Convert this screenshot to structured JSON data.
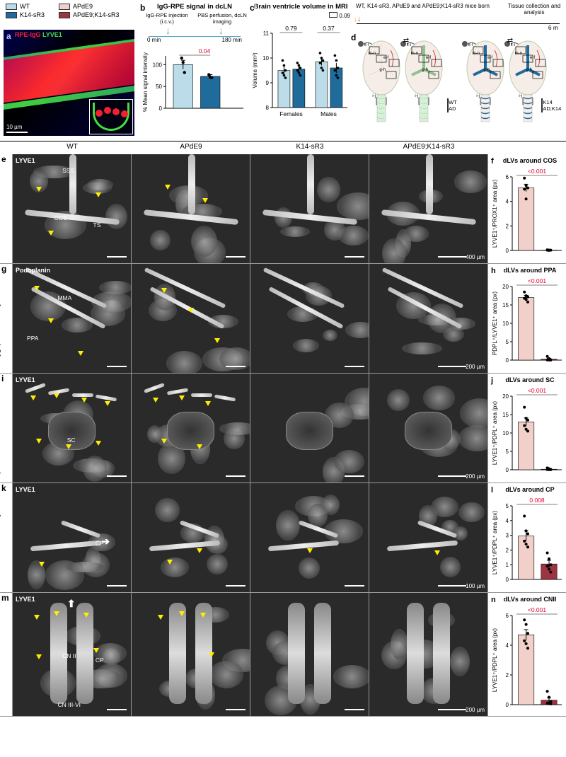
{
  "legend": {
    "items": [
      {
        "label": "WT",
        "color": "#bcdcea"
      },
      {
        "label": "K14-sR3",
        "color": "#1f6b9c"
      },
      {
        "label": "APdE9",
        "color": "#f0d0c9"
      },
      {
        "label": "APdE9;K14-sR3",
        "color": "#9e3341"
      }
    ]
  },
  "panel_a": {
    "letter": "a",
    "stain1": {
      "label": "RPE-IgG",
      "color": "#ff2030"
    },
    "stain2": {
      "label": "LYVE1",
      "color": "#40e040"
    },
    "scale": "10 µm"
  },
  "panel_b": {
    "letter": "b",
    "title": "IgG-RPE signal in dcLN",
    "step1": "IgG-RPE injection (i.c.v.)",
    "step2": "PBS perfusion, dcLN imaging",
    "t0": "0 min",
    "t1": "180 min",
    "ylabel": "% Mean signal intensity",
    "ylim": [
      0,
      120
    ],
    "yticks": [
      0,
      50,
      100
    ],
    "pvalue": "0.04",
    "bars": [
      {
        "group": "WT",
        "value": 100,
        "err": 10,
        "color": "#bcdcea",
        "points": [
          115,
          105,
          82
        ]
      },
      {
        "group": "K14-sR3",
        "value": 73,
        "err": 4,
        "color": "#1f6b9c",
        "points": [
          77,
          71,
          70
        ]
      }
    ]
  },
  "panel_c": {
    "letter": "c",
    "title": "Brain ventricle volume in MRI",
    "ylabel": "Volume (mm³)",
    "ylim": [
      8,
      11
    ],
    "yticks": [
      8,
      9,
      10,
      11
    ],
    "legend_p": "0.09",
    "groups": [
      {
        "label": "Females",
        "p": "0.79",
        "bars": [
          {
            "value": 9.5,
            "err": 0.15,
            "color": "#bcdcea",
            "points": [
              9.9,
              9.7,
              9.5,
              9.4,
              9.3,
              9.2
            ]
          },
          {
            "value": 9.55,
            "err": 0.12,
            "color": "#1f6b9c",
            "points": [
              9.8,
              9.7,
              9.6,
              9.5,
              9.4,
              9.3
            ]
          }
        ]
      },
      {
        "label": "Males",
        "p": "0.37",
        "bars": [
          {
            "value": 9.85,
            "err": 0.15,
            "color": "#bcdcea",
            "points": [
              10.2,
              10.0,
              9.9,
              9.8,
              9.6,
              9.5
            ]
          },
          {
            "value": 9.6,
            "err": 0.2,
            "color": "#1f6b9c",
            "points": [
              10.1,
              9.9,
              9.6,
              9.5,
              9.3,
              9.2
            ]
          }
        ]
      }
    ]
  },
  "panel_d": {
    "letter": "d",
    "t0_label": "WT, K14-sR3, APdE9 and APdE9;K14-sR3 mice born",
    "t1_label": "Tissue collection and analysis",
    "t1": "6 m",
    "arrow_color_born": "#f5a142",
    "arrow_color_collect": "#e4002b",
    "left_legend": [
      {
        "label": "WT",
        "color": "#f0d0c9"
      },
      {
        "label": "AD",
        "color": "#c3e0c3"
      }
    ],
    "right_legend": [
      {
        "label": "K14",
        "color": "#1f6b9c"
      },
      {
        "label": "AD;K14",
        "color": "#9e3341"
      }
    ],
    "roi_labels": [
      "k-l",
      "m-n",
      "e-f",
      "g-h",
      "i-j"
    ]
  },
  "columns": [
    "WT",
    "APdE9",
    "K14-sR3",
    "APdE9;K14-sR3"
  ],
  "rows": [
    {
      "letter": "e",
      "region": "Confluence of sinuses",
      "marker": "LYVE1",
      "scale": "400 µm",
      "anat": [
        "SSS",
        "COS",
        "TS"
      ],
      "chart": {
        "letter": "f",
        "title": "dLVs around COS",
        "ylabel": "LYVE1⁺/PROX1⁺ area (px)",
        "ylim": [
          0,
          6
        ],
        "yticks": [
          0,
          2,
          4,
          6
        ],
        "p": "<0.001",
        "bars": [
          {
            "value": 5.1,
            "err": 0.3,
            "color": "#f0d0c9",
            "points": [
              5.9,
              5.3,
              5.1,
              5.0,
              4.2
            ]
          },
          {
            "value": 0.02,
            "err": 0.02,
            "color": "#9e3341",
            "points": [
              0.05,
              0.03,
              0.02,
              0.02,
              0.01
            ]
          }
        ]
      }
    },
    {
      "letter": "g",
      "region": "Pterygopalatine artery",
      "marker": "Podoplanin",
      "scale": "200 µm",
      "anat": [
        "MMA",
        "PPA"
      ],
      "chart": {
        "letter": "h",
        "title": "dLVs around PPA",
        "ylabel": "PDPL⁺/LYVE1⁺ area (px)",
        "ylim": [
          0,
          20
        ],
        "yticks": [
          0,
          5,
          10,
          15,
          20
        ],
        "p": "<0.001",
        "bars": [
          {
            "value": 17,
            "err": 0.6,
            "color": "#f0d0c9",
            "points": [
              18.5,
              17.5,
              17.2,
              16.8,
              16.5,
              15.8
            ]
          },
          {
            "value": 0.25,
            "err": 0.2,
            "color": "#9e3341",
            "points": [
              1.0,
              0.4,
              0.1,
              0.05,
              0.03,
              0.02
            ]
          }
        ]
      }
    },
    {
      "letter": "i",
      "region": "Spinal canal",
      "marker": "LYVE1",
      "scale": "200 µm",
      "anat": [
        "SC"
      ],
      "chart": {
        "letter": "j",
        "title": "dLVs around SC",
        "ylabel": "LYVE1⁺/PDPL⁺ area (px)",
        "ylim": [
          0,
          20
        ],
        "yticks": [
          0,
          5,
          10,
          15,
          20
        ],
        "p": "<0.001",
        "bars": [
          {
            "value": 13,
            "err": 1.1,
            "color": "#f0d0c9",
            "points": [
              17,
              14,
              13.5,
              12,
              11,
              10.5
            ]
          },
          {
            "value": 0.15,
            "err": 0.1,
            "color": "#9e3341",
            "points": [
              0.5,
              0.3,
              0.1,
              0.05,
              0.03,
              0.02
            ]
          }
        ]
      }
    },
    {
      "letter": "k",
      "region": "External ethmoidal artery",
      "marker": "LYVE1",
      "scale": "100 µm",
      "anat": [
        "CP"
      ],
      "chart": {
        "letter": "l",
        "title": "dLVs around CP",
        "ylabel": "LYVE1⁺/PDPL⁺ area (px)",
        "ylim": [
          0,
          5
        ],
        "yticks": [
          0,
          1,
          2,
          3,
          4,
          5
        ],
        "p": "0.008",
        "bars": [
          {
            "value": 2.95,
            "err": 0.35,
            "color": "#f0d0c9",
            "points": [
              4.3,
              3.3,
              3.1,
              2.6,
              2.4,
              2.2
            ]
          },
          {
            "value": 1.05,
            "err": 0.25,
            "color": "#9e3341",
            "points": [
              1.8,
              1.4,
              1.0,
              0.9,
              0.7,
              0.5
            ]
          }
        ]
      }
    },
    {
      "letter": "m",
      "region": "Cranial nerves II-VI",
      "marker": "LYVE1",
      "scale": "200 µm",
      "anat": [
        "CP",
        "CN II",
        "CN III-VI"
      ],
      "chart": {
        "letter": "n",
        "title": "dLVs around CNII",
        "ylabel": "LYVE1⁺/PDPL⁺ area (px)",
        "ylim": [
          0,
          6
        ],
        "yticks": [
          0,
          2,
          4,
          6
        ],
        "p": "<0.001",
        "bars": [
          {
            "value": 4.7,
            "err": 0.35,
            "color": "#f0d0c9",
            "points": [
              5.7,
              5.4,
              4.8,
              4.3,
              4.1,
              3.8
            ]
          },
          {
            "value": 0.3,
            "err": 0.15,
            "color": "#9e3341",
            "points": [
              0.9,
              0.5,
              0.2,
              0.1,
              0.08,
              0.05
            ]
          }
        ]
      }
    }
  ],
  "row_heights": {
    "tall_last": true
  }
}
